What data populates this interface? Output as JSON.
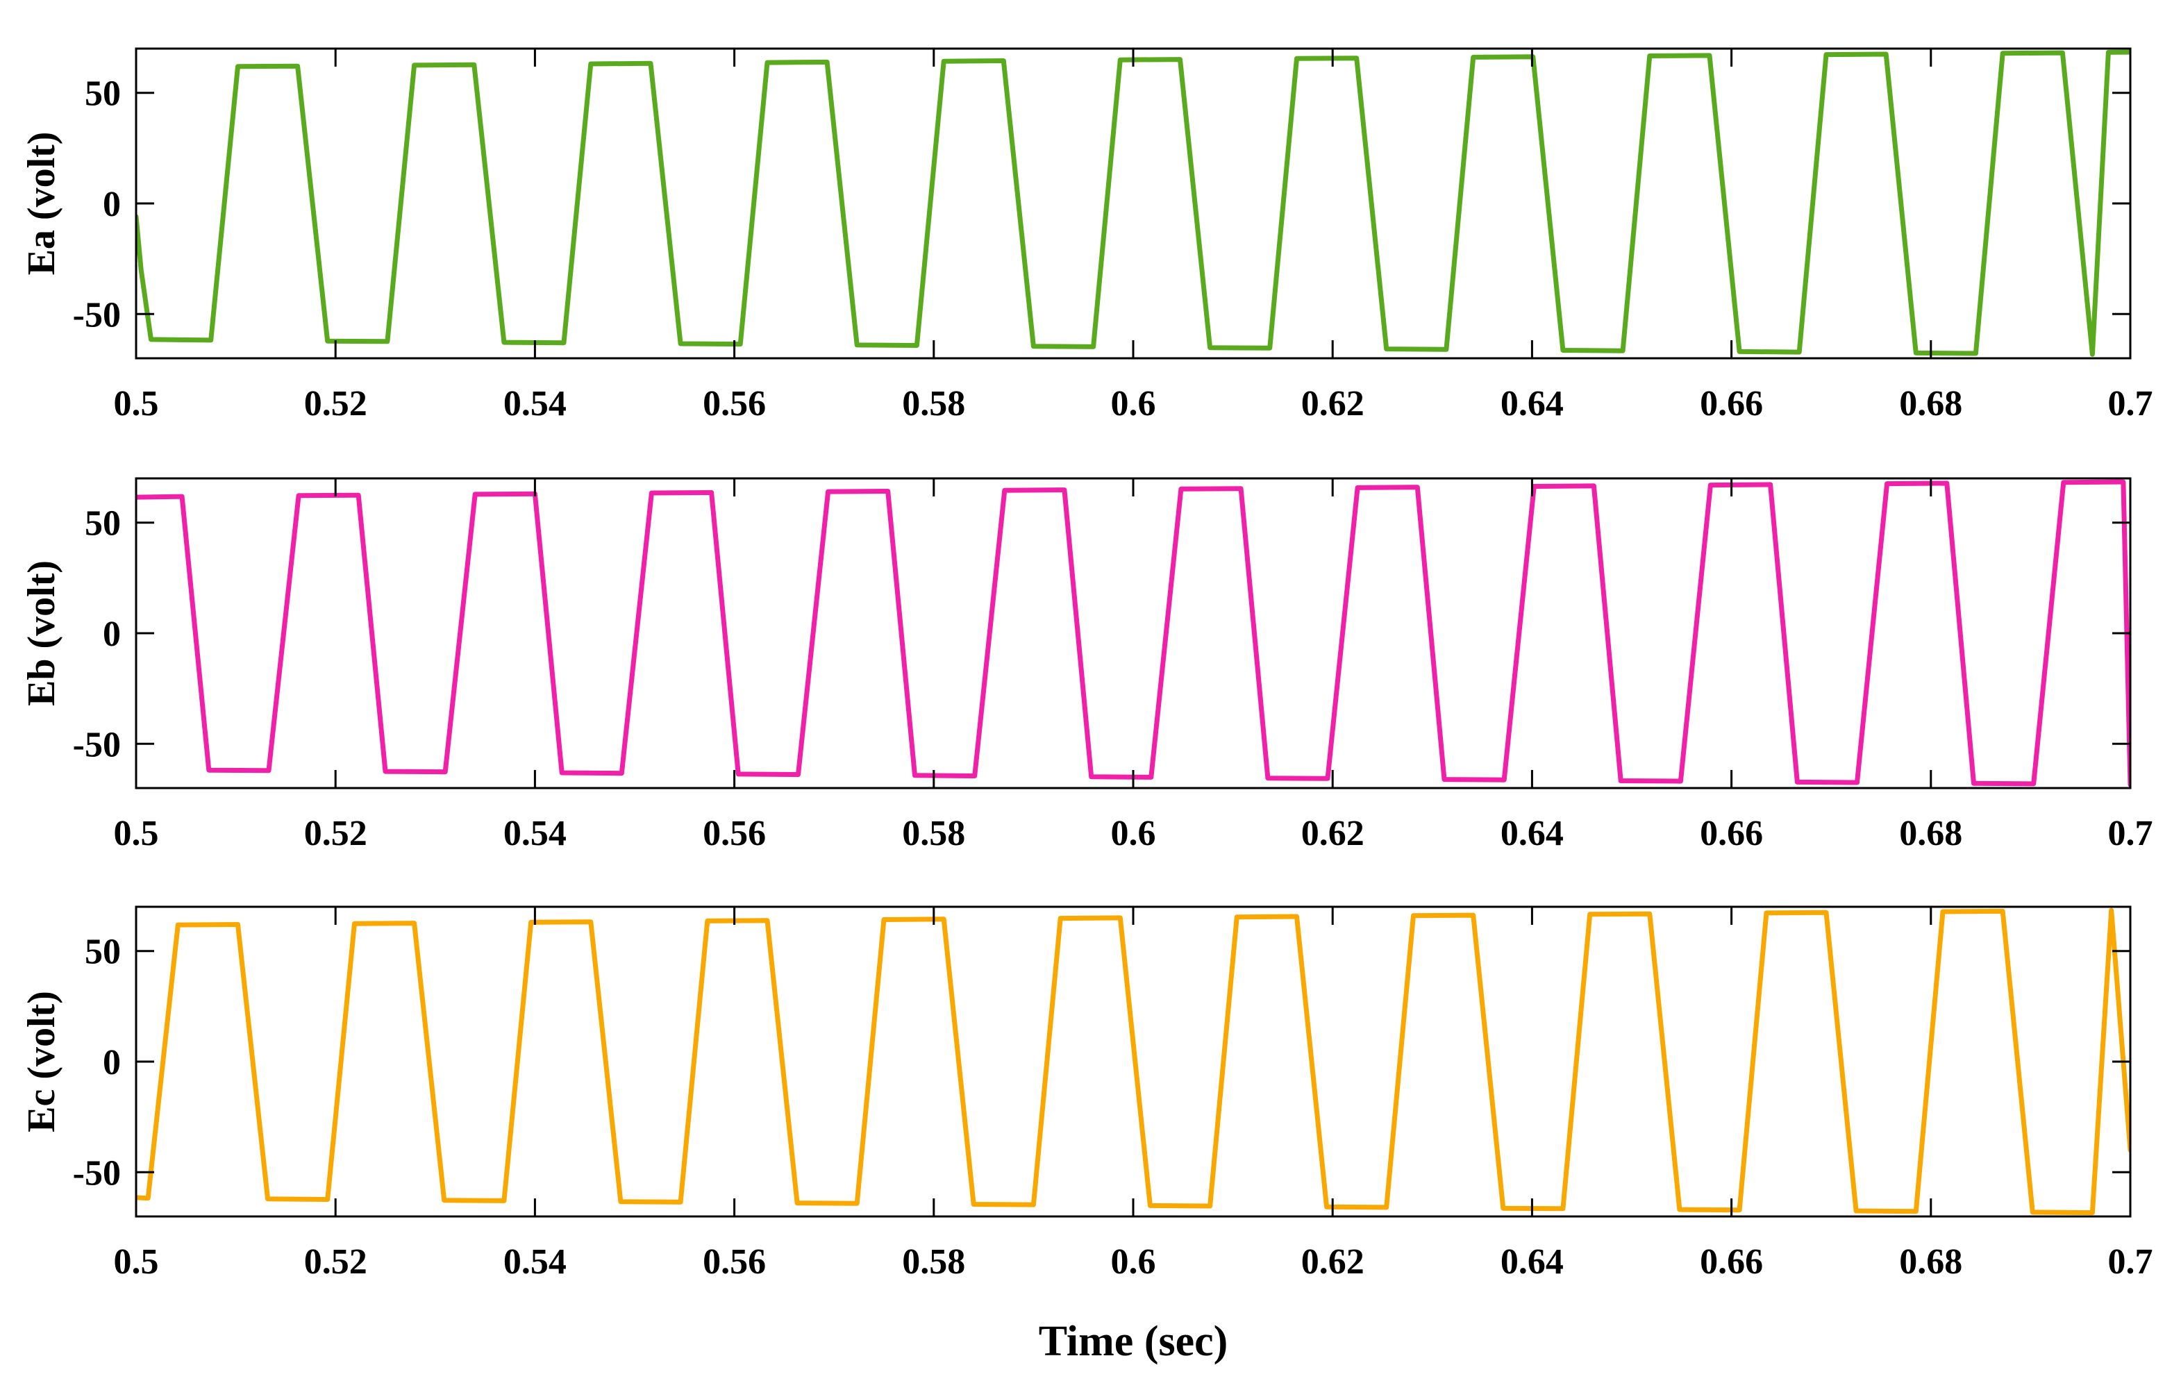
{
  "chart_data": [
    {
      "type": "line",
      "ylabel": "Ea (volt)",
      "xlabel": "",
      "xlim": [
        0.5,
        0.7
      ],
      "ylim": [
        -70,
        70
      ],
      "xticks": [
        0.5,
        0.52,
        0.54,
        0.56,
        0.58,
        0.6,
        0.62,
        0.64,
        0.66,
        0.68,
        0.7
      ],
      "xtick_labels": [
        "0.5",
        "0.52",
        "0.54",
        "0.56",
        "0.58",
        "0.6",
        "0.62",
        "0.64",
        "0.66",
        "0.68",
        "0.7"
      ],
      "yticks": [
        -50,
        0,
        50
      ],
      "ytick_labels": [
        "-50",
        "0",
        "50"
      ],
      "grid": false,
      "series": [
        {
          "name": "Ea",
          "color": "#5aaa1e",
          "x": [
            0.5,
            0.5005,
            0.5015,
            0.5075,
            0.5102,
            0.5162,
            0.5192,
            0.5252,
            0.5279,
            0.5339,
            0.5369,
            0.5429,
            0.5456,
            0.5516,
            0.5546,
            0.5606,
            0.5633,
            0.5693,
            0.5723,
            0.5783,
            0.581,
            0.587,
            0.59,
            0.596,
            0.5987,
            0.6047,
            0.6077,
            0.6137,
            0.6164,
            0.6224,
            0.6254,
            0.6314,
            0.6341,
            0.6401,
            0.6431,
            0.6491,
            0.6518,
            0.6578,
            0.6608,
            0.6668,
            0.6695,
            0.6755,
            0.6785,
            0.6845,
            0.6872,
            0.6932,
            0.6962,
            0.6978,
            0.7
          ],
          "y": [
            -6,
            -30,
            -61.5,
            -61.8,
            61.9,
            62.1,
            -62.2,
            -62.4,
            62.5,
            62.7,
            -62.8,
            -63.0,
            63.1,
            63.3,
            -63.4,
            -63.6,
            63.7,
            63.9,
            -64.0,
            -64.2,
            64.3,
            64.5,
            -64.6,
            -64.8,
            64.9,
            65.1,
            -65.2,
            -65.4,
            65.5,
            65.7,
            -65.8,
            -66.0,
            66.1,
            66.3,
            -66.4,
            -66.6,
            66.7,
            66.9,
            -67.0,
            -67.2,
            67.3,
            67.5,
            -67.6,
            -67.8,
            67.9,
            68.1,
            -68.2,
            68.3,
            68.4
          ]
        }
      ]
    },
    {
      "type": "line",
      "ylabel": "Eb (volt)",
      "xlabel": "",
      "xlim": [
        0.5,
        0.7
      ],
      "ylim": [
        -70,
        70
      ],
      "xticks": [
        0.5,
        0.52,
        0.54,
        0.56,
        0.58,
        0.6,
        0.62,
        0.64,
        0.66,
        0.68,
        0.7
      ],
      "xtick_labels": [
        "0.5",
        "0.52",
        "0.54",
        "0.56",
        "0.58",
        "0.6",
        "0.62",
        "0.64",
        "0.66",
        "0.68",
        "0.7"
      ],
      "yticks": [
        -50,
        0,
        50
      ],
      "ytick_labels": [
        "-50",
        "0",
        "50"
      ],
      "grid": false,
      "series": [
        {
          "name": "Eb",
          "color": "#f020a8",
          "x": [
            0.5,
            0.5046,
            0.5073,
            0.5133,
            0.5163,
            0.5223,
            0.525,
            0.531,
            0.534,
            0.54,
            0.5427,
            0.5487,
            0.5517,
            0.5577,
            0.5604,
            0.5664,
            0.5694,
            0.5754,
            0.5781,
            0.5841,
            0.5871,
            0.5931,
            0.5958,
            0.6018,
            0.6048,
            0.6108,
            0.6135,
            0.6195,
            0.6225,
            0.6285,
            0.6312,
            0.6372,
            0.6402,
            0.6462,
            0.6489,
            0.6549,
            0.6579,
            0.6639,
            0.6666,
            0.6726,
            0.6756,
            0.6816,
            0.6843,
            0.6903,
            0.6933,
            0.6993,
            0.7
          ],
          "y": [
            61.5,
            61.8,
            -61.9,
            -62.1,
            62.2,
            62.4,
            -62.5,
            -62.7,
            62.8,
            63.0,
            -63.1,
            -63.3,
            63.4,
            63.6,
            -63.7,
            -63.9,
            64.0,
            64.2,
            -64.3,
            -64.5,
            64.6,
            64.8,
            -64.9,
            -65.1,
            65.2,
            65.4,
            -65.5,
            -65.7,
            65.8,
            66.0,
            -66.1,
            -66.3,
            66.4,
            66.6,
            -66.7,
            -66.9,
            67.0,
            67.2,
            -67.3,
            -67.5,
            67.6,
            67.8,
            -67.9,
            -68.1,
            68.2,
            68.4,
            -68.5
          ]
        }
      ]
    },
    {
      "type": "line",
      "ylabel": "Ec (volt)",
      "xlabel": "Time (sec)",
      "xlim": [
        0.5,
        0.7
      ],
      "ylim": [
        -70,
        70
      ],
      "xticks": [
        0.5,
        0.52,
        0.54,
        0.56,
        0.58,
        0.6,
        0.62,
        0.64,
        0.66,
        0.68,
        0.7
      ],
      "xtick_labels": [
        "0.5",
        "0.52",
        "0.54",
        "0.56",
        "0.58",
        "0.6",
        "0.62",
        "0.64",
        "0.66",
        "0.68",
        "0.7"
      ],
      "yticks": [
        -50,
        0,
        50
      ],
      "ytick_labels": [
        "-50",
        "0",
        "50"
      ],
      "grid": false,
      "series": [
        {
          "name": "Ec",
          "color": "#f8a800",
          "x": [
            0.5,
            0.5012,
            0.5042,
            0.5102,
            0.5132,
            0.5192,
            0.5219,
            0.5279,
            0.5309,
            0.5369,
            0.5396,
            0.5456,
            0.5486,
            0.5546,
            0.5573,
            0.5633,
            0.5663,
            0.5723,
            0.575,
            0.581,
            0.584,
            0.59,
            0.5927,
            0.5987,
            0.6017,
            0.6077,
            0.6104,
            0.6164,
            0.6194,
            0.6254,
            0.6281,
            0.6341,
            0.6371,
            0.6431,
            0.6458,
            0.6518,
            0.6548,
            0.6608,
            0.6635,
            0.6695,
            0.6725,
            0.6785,
            0.6812,
            0.6872,
            0.6902,
            0.6962,
            0.6981,
            0.7
          ],
          "y": [
            -61.5,
            -61.7,
            61.8,
            62.0,
            -62.1,
            -62.3,
            62.4,
            62.6,
            -62.7,
            -62.9,
            63.0,
            63.2,
            -63.3,
            -63.5,
            63.6,
            63.8,
            -63.9,
            -64.1,
            64.2,
            64.4,
            -64.5,
            -64.7,
            64.8,
            65.0,
            -65.1,
            -65.3,
            65.4,
            65.6,
            -65.7,
            -65.9,
            66.0,
            66.2,
            -66.3,
            -66.5,
            66.6,
            66.8,
            -66.9,
            -67.1,
            67.2,
            67.4,
            -67.5,
            -67.7,
            67.8,
            68.0,
            -68.1,
            -68.3,
            68.4,
            -40
          ]
        }
      ]
    }
  ]
}
